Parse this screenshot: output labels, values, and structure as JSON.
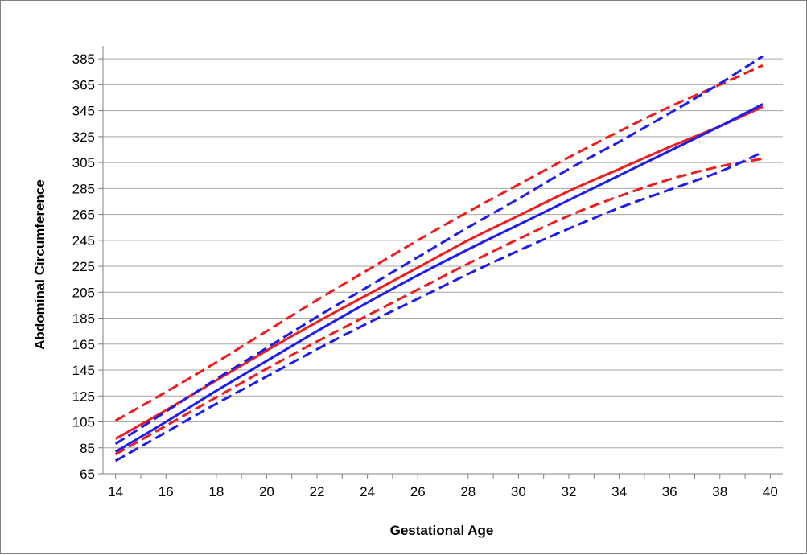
{
  "chart_data": {
    "type": "line",
    "title": "",
    "xlabel": "Gestational Age",
    "ylabel": "Abdominal Circumference",
    "xlim": [
      13.5,
      40.5
    ],
    "ylim": [
      65,
      395
    ],
    "x_ticks": [
      14,
      16,
      18,
      20,
      22,
      24,
      26,
      28,
      30,
      32,
      34,
      36,
      38,
      40
    ],
    "y_ticks": [
      65,
      85,
      105,
      125,
      145,
      165,
      185,
      205,
      225,
      245,
      265,
      285,
      305,
      325,
      345,
      365,
      385
    ],
    "grid": "horizontal",
    "legend": "none",
    "x": [
      14,
      16,
      18,
      20,
      22,
      24,
      26,
      28,
      30,
      32,
      34,
      36,
      38,
      39.7
    ],
    "series": [
      {
        "color": "#ee1c1c",
        "style": "solid",
        "values": [
          92,
          114,
          137,
          160,
          182,
          203,
          224,
          245,
          264,
          283,
          300,
          317,
          333,
          348
        ]
      },
      {
        "color": "#ee1c1c",
        "style": "dashed",
        "values": [
          106,
          128,
          151,
          175,
          199,
          222,
          245,
          267,
          288,
          309,
          329,
          348,
          365,
          380
        ]
      },
      {
        "color": "#ee1c1c",
        "style": "dashed",
        "values": [
          80,
          102,
          124,
          146,
          167,
          187,
          207,
          227,
          246,
          264,
          279,
          292,
          302,
          308
        ]
      },
      {
        "color": "#1c1cee",
        "style": "solid",
        "values": [
          82,
          105,
          129,
          152,
          175,
          197,
          218,
          238,
          257,
          276,
          295,
          314,
          333,
          350
        ]
      },
      {
        "color": "#1c1cee",
        "style": "dashed",
        "values": [
          88,
          113,
          138,
          162,
          186,
          209,
          232,
          255,
          277,
          300,
          321,
          343,
          366,
          387
        ]
      },
      {
        "color": "#1c1cee",
        "style": "dashed",
        "values": [
          75,
          97,
          119,
          140,
          161,
          181,
          200,
          219,
          237,
          254,
          270,
          284,
          298,
          313
        ]
      }
    ]
  }
}
